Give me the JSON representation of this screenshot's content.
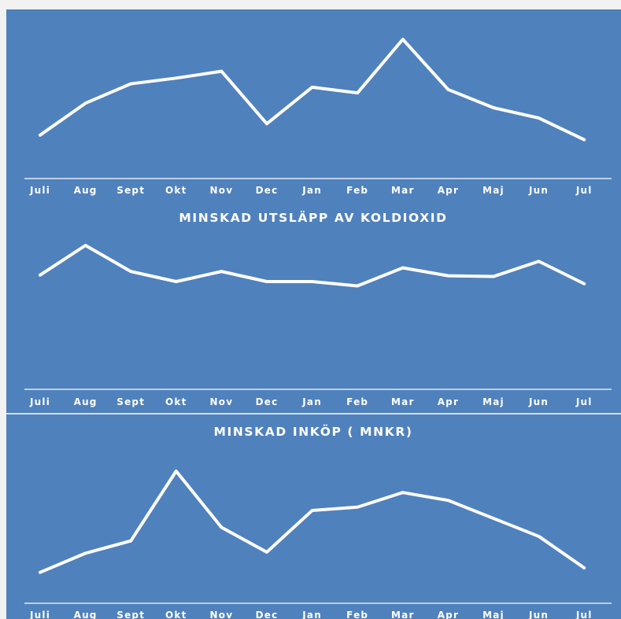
{
  "colors": {
    "background": "#4f81bd",
    "line": "#ffffff",
    "page": "#f2f2f2"
  },
  "chart_data": [
    {
      "type": "line",
      "title": "",
      "categories": [
        "Juli",
        "Aug",
        "Sept",
        "Okt",
        "Nov",
        "Dec",
        "Jan",
        "Feb",
        "Mar",
        "Apr",
        "Maj",
        "Jun",
        "Jul"
      ],
      "series": [
        {
          "values": [
            16,
            44,
            61,
            66,
            72,
            26,
            58,
            53,
            100,
            56,
            40,
            31,
            12
          ]
        }
      ],
      "ylim": [
        0,
        100
      ],
      "grid": false,
      "drop_lines": true
    },
    {
      "type": "line",
      "title": "MINSKAD UTSLÄPP AV KOLDIOXID",
      "categories": [
        "Juli",
        "Aug",
        "Sept",
        "Okt",
        "Nov",
        "Dec",
        "Jan",
        "Feb",
        "Mar",
        "Apr",
        "Maj",
        "Jun",
        "Jul"
      ],
      "series": [
        {
          "values": [
            59,
            100,
            64,
            50,
            64,
            50,
            50,
            44,
            69,
            58,
            57,
            78,
            47
          ]
        }
      ],
      "ylim": [
        0,
        100
      ],
      "grid": false,
      "drop_lines": true
    },
    {
      "type": "line",
      "title": "MINSKAD INKÖP ( MNKR)",
      "categories": [
        "Juli",
        "Aug",
        "Sept",
        "Okt",
        "Nov",
        "Dec",
        "Jan",
        "Feb",
        "Mar",
        "Apr",
        "Maj",
        "Jun",
        "Jul"
      ],
      "series": [
        {
          "values": [
            10,
            27,
            38,
            100,
            50,
            28,
            65,
            68,
            81,
            74,
            58,
            42,
            14
          ]
        }
      ],
      "ylim": [
        0,
        100
      ],
      "grid": false,
      "drop_lines": true
    }
  ]
}
